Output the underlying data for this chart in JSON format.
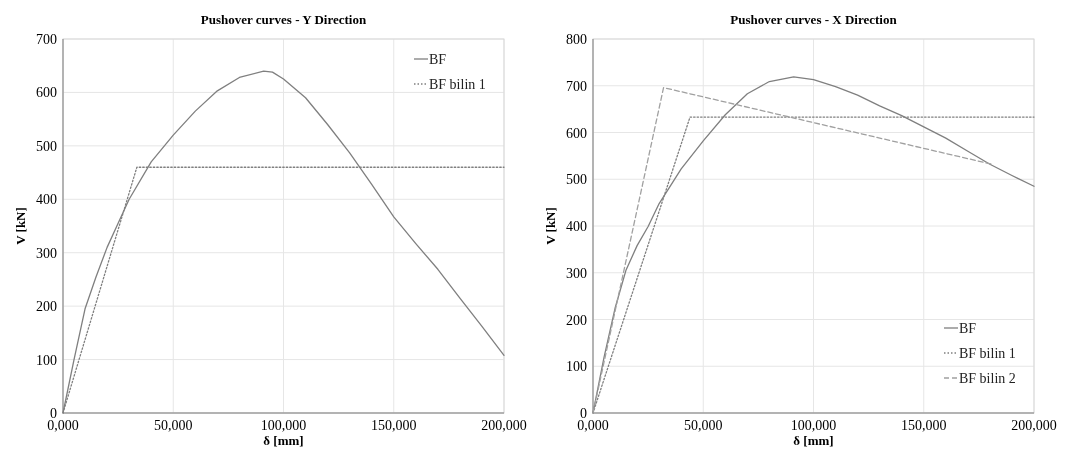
{
  "chart_data": [
    {
      "type": "line",
      "title": "Pushover curves - Y Direction",
      "xlabel": "δ [mm]",
      "ylabel": "V [kN]",
      "xlim": [
        0,
        200
      ],
      "xticks": [
        {
          "value": 0,
          "label": "0,000"
        },
        {
          "value": 50,
          "label": "50,000"
        },
        {
          "value": 100,
          "label": "100,000"
        },
        {
          "value": 150,
          "label": "150,000"
        },
        {
          "value": 200,
          "label": "200,000"
        }
      ],
      "ylim": [
        0,
        700
      ],
      "yticks": [
        0,
        100,
        200,
        300,
        400,
        500,
        600,
        700
      ],
      "grid": true,
      "legend": "top right",
      "series": [
        {
          "name": "BF",
          "color": "#7f7f7f",
          "line_style": "solid",
          "x": [
            0,
            5,
            10,
            15,
            20,
            25,
            30,
            40,
            50,
            60,
            70,
            80,
            91,
            95,
            100,
            110,
            120,
            130,
            140,
            150,
            160,
            170,
            180,
            190,
            200
          ],
          "values": [
            0,
            100,
            195,
            255,
            310,
            355,
            400,
            470,
            520,
            565,
            603,
            628,
            640,
            638,
            625,
            590,
            540,
            487,
            428,
            367,
            317,
            269,
            215,
            162,
            108
          ]
        },
        {
          "name": "BF bilin 1",
          "color": "#7f7f7f",
          "line_style": "dotted",
          "x": [
            0,
            33.5,
            200
          ],
          "values": [
            0,
            460,
            460
          ]
        }
      ]
    },
    {
      "type": "line",
      "title": "Pushover curves - X Direction",
      "xlabel": "δ [mm]",
      "ylabel": "V [kN]",
      "xlim": [
        0,
        200
      ],
      "xticks": [
        {
          "value": 0,
          "label": "0,000"
        },
        {
          "value": 50,
          "label": "50,000"
        },
        {
          "value": 100,
          "label": "100,000"
        },
        {
          "value": 150,
          "label": "150,000"
        },
        {
          "value": 200,
          "label": "200,000"
        }
      ],
      "ylim": [
        0,
        800
      ],
      "yticks": [
        0,
        100,
        200,
        300,
        400,
        500,
        600,
        700,
        800
      ],
      "grid": true,
      "legend": "bottom right",
      "series": [
        {
          "name": "BF",
          "color": "#7f7f7f",
          "line_style": "solid",
          "x": [
            0,
            5,
            10,
            15,
            20,
            25,
            30,
            40,
            50,
            60,
            70,
            80,
            91,
            100,
            110,
            120,
            130,
            140,
            150,
            160,
            170,
            180,
            190,
            200
          ],
          "values": [
            0,
            119,
            224,
            306,
            358,
            399,
            448,
            522,
            582,
            638,
            683,
            709,
            719,
            713,
            698,
            680,
            657,
            636,
            612,
            588,
            560,
            532,
            508,
            485
          ]
        },
        {
          "name": "BF bilin 1",
          "color": "#7f7f7f",
          "line_style": "dotted",
          "x": [
            0,
            44,
            200
          ],
          "values": [
            0,
            633,
            633
          ]
        },
        {
          "name": "BF bilin 2",
          "color": "#a0a0a0",
          "line_style": "dashed",
          "x": [
            0,
            32,
            181
          ],
          "values": [
            0,
            696,
            532
          ]
        }
      ]
    }
  ]
}
